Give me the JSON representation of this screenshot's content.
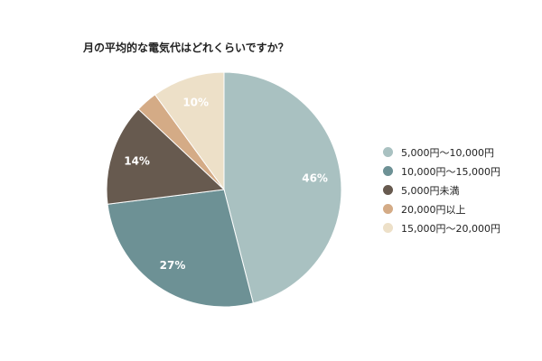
{
  "chart_data": {
    "type": "pie",
    "title": "月の平均的な電気代はどれくらいですか？",
    "legend_position": "right",
    "slices": [
      {
        "label": "5,000円〜10,000円",
        "value": 46,
        "display": "46%",
        "color": "#a9c1c1"
      },
      {
        "label": "10,000円〜15,000円",
        "value": 27,
        "display": "27%",
        "color": "#6d9195"
      },
      {
        "label": "5,000円未満",
        "value": 14,
        "display": "14%",
        "color": "#675a4f"
      },
      {
        "label": "20,000円以上",
        "value": 3,
        "display": "",
        "color": "#d4ab86"
      },
      {
        "label": "15,000円〜20,000円",
        "value": 10,
        "display": "10%",
        "color": "#ede0c8"
      }
    ]
  }
}
